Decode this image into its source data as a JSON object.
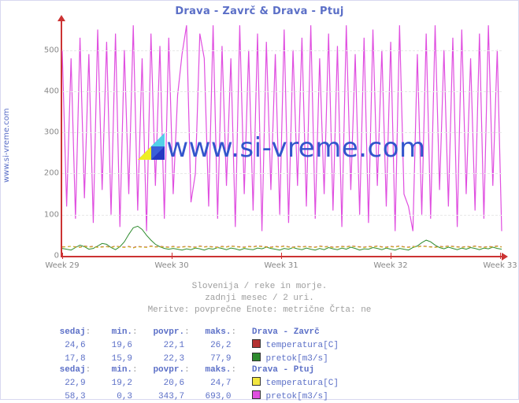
{
  "title": "Drava - Zavrč & Drava - Ptuj",
  "ylabel_side": "www.si-vreme.com",
  "watermark_text": "www.si-vreme.com",
  "subtitle": {
    "line1": "Slovenija / reke in morje.",
    "line2": "zadnji mesec / 2 uri.",
    "line3": "Meritve: povprečne  Enote: metrične  Črta: ne"
  },
  "chart": {
    "type": "line",
    "ylim": [
      0,
      570
    ],
    "yticks": [
      0,
      100,
      200,
      300,
      400,
      500
    ],
    "ytick_labels": [
      "0",
      "100",
      "200",
      "300",
      "400",
      "500"
    ],
    "xticks": [
      0,
      0.25,
      0.5,
      0.75,
      1.0
    ],
    "xtick_labels": [
      "Week 29",
      "Week 30",
      "Week 31",
      "Week 32",
      "Week 33"
    ],
    "grid_color": "#e8e8e8",
    "axis_color": "#cc3333",
    "background_color": "#ffffff",
    "series": [
      {
        "name": "Drava-Zavrc-temperatura",
        "color": "#b43232",
        "dash": "4,3",
        "width": 1,
        "values": [
          22,
          22,
          23,
          22,
          21,
          24,
          22,
          23,
          21,
          22,
          23,
          21,
          24,
          22,
          21,
          23,
          20,
          23,
          22,
          21,
          24,
          22,
          23,
          22,
          21,
          23,
          21,
          22,
          23,
          22,
          21,
          24,
          22,
          23,
          22,
          21,
          23,
          22,
          24,
          23,
          22,
          21,
          23,
          22,
          24,
          23,
          22,
          21,
          23,
          22,
          24,
          22,
          21,
          23,
          22,
          23,
          22,
          21,
          24,
          22,
          23,
          21,
          22,
          23,
          22,
          24,
          23,
          22,
          21,
          23,
          22,
          24,
          22,
          21,
          23,
          22,
          24,
          22,
          21,
          23,
          22,
          24,
          23,
          22,
          21,
          23,
          22,
          24,
          23,
          22,
          21,
          23,
          22,
          24,
          22,
          21,
          23,
          22,
          24,
          22
        ]
      },
      {
        "name": "Drava-Zavrc-pretok",
        "color": "#2e8b2e",
        "dash": "",
        "width": 1,
        "values": [
          18,
          16,
          14,
          20,
          26,
          22,
          16,
          18,
          24,
          30,
          28,
          20,
          15,
          22,
          34,
          52,
          68,
          72,
          64,
          50,
          38,
          28,
          22,
          18,
          16,
          18,
          16,
          14,
          17,
          15,
          19,
          17,
          14,
          18,
          16,
          20,
          18,
          15,
          19,
          17,
          14,
          18,
          16,
          15,
          19,
          17,
          21,
          18,
          16,
          14,
          18,
          16,
          20,
          17,
          15,
          19,
          16,
          14,
          18,
          15,
          20,
          17,
          15,
          19,
          16,
          21,
          18,
          14,
          17,
          16,
          20,
          18,
          15,
          19,
          16,
          14,
          18,
          16,
          14,
          20,
          24,
          32,
          38,
          34,
          26,
          20,
          17,
          21,
          18,
          15,
          19,
          16,
          20,
          18,
          15,
          19,
          17,
          21,
          18,
          16
        ]
      },
      {
        "name": "Drava-Ptuj-temperatura",
        "color": "#d4c82a",
        "dash": "4,3",
        "width": 1,
        "values": [
          21,
          22,
          23,
          21,
          20,
          23,
          21,
          22,
          20,
          21,
          22,
          20,
          23,
          21,
          20,
          22,
          19,
          22,
          21,
          20,
          23,
          21,
          22,
          21,
          20,
          22,
          20,
          21,
          22,
          21,
          20,
          23,
          21,
          22,
          21,
          20,
          22,
          21,
          23,
          22,
          21,
          20,
          22,
          21,
          23,
          22,
          21,
          20,
          22,
          21,
          23,
          21,
          20,
          22,
          21,
          22,
          21,
          20,
          23,
          21,
          22,
          20,
          21,
          22,
          21,
          23,
          22,
          21,
          20,
          22,
          21,
          23,
          21,
          20,
          22,
          21,
          23,
          21,
          20,
          22,
          21,
          23,
          22,
          21,
          20,
          22,
          21,
          23,
          22,
          21,
          20,
          22,
          21,
          23,
          21,
          20,
          22,
          21,
          23,
          21
        ]
      },
      {
        "name": "Drava-Ptuj-pretok",
        "color": "#e04fe0",
        "dash": "",
        "width": 1.2,
        "values": [
          500,
          120,
          480,
          90,
          530,
          140,
          490,
          80,
          550,
          160,
          520,
          100,
          540,
          70,
          500,
          150,
          560,
          110,
          480,
          60,
          540,
          170,
          510,
          90,
          530,
          150,
          390,
          490,
          560,
          130,
          200,
          540,
          480,
          120,
          560,
          90,
          510,
          170,
          480,
          70,
          560,
          150,
          500,
          110,
          540,
          60,
          520,
          160,
          490,
          100,
          550,
          80,
          500,
          170,
          530,
          120,
          560,
          90,
          480,
          150,
          540,
          110,
          510,
          70,
          560,
          160,
          490,
          100,
          530,
          80,
          550,
          170,
          500,
          120,
          520,
          60,
          560,
          150,
          120,
          60,
          490,
          100,
          540,
          90,
          560,
          160,
          500,
          120,
          530,
          70,
          550,
          150,
          480,
          110,
          540,
          90,
          560,
          170,
          500,
          60
        ]
      }
    ]
  },
  "stats": {
    "headers": {
      "sedaj": "sedaj",
      "min": "min.",
      "povpr": "povpr.",
      "maks": "maks."
    },
    "blocks": [
      {
        "title": "Drava - Zavrč",
        "rows": [
          {
            "sedaj": "24,6",
            "min": "19,6",
            "povpr": "22,1",
            "maks": "26,2",
            "label": "temperatura[C]",
            "swatch": "#b43232"
          },
          {
            "sedaj": "17,8",
            "min": "15,9",
            "povpr": "22,3",
            "maks": "77,9",
            "label": "pretok[m3/s]",
            "swatch": "#2e8b2e"
          }
        ]
      },
      {
        "title": "Drava - Ptuj",
        "rows": [
          {
            "sedaj": "22,9",
            "min": "19,2",
            "povpr": "20,6",
            "maks": "24,7",
            "label": "temperatura[C]",
            "swatch": "#f2e640"
          },
          {
            "sedaj": "58,3",
            "min": "0,3",
            "povpr": "343,7",
            "maks": "693,0",
            "label": "pretok[m3/s]",
            "swatch": "#e04fe0"
          }
        ]
      }
    ]
  },
  "wm_logo_colors": {
    "a": "#3a5fd9",
    "b": "#53d0e8",
    "c": "#eeee22",
    "d": "#2638c2"
  }
}
